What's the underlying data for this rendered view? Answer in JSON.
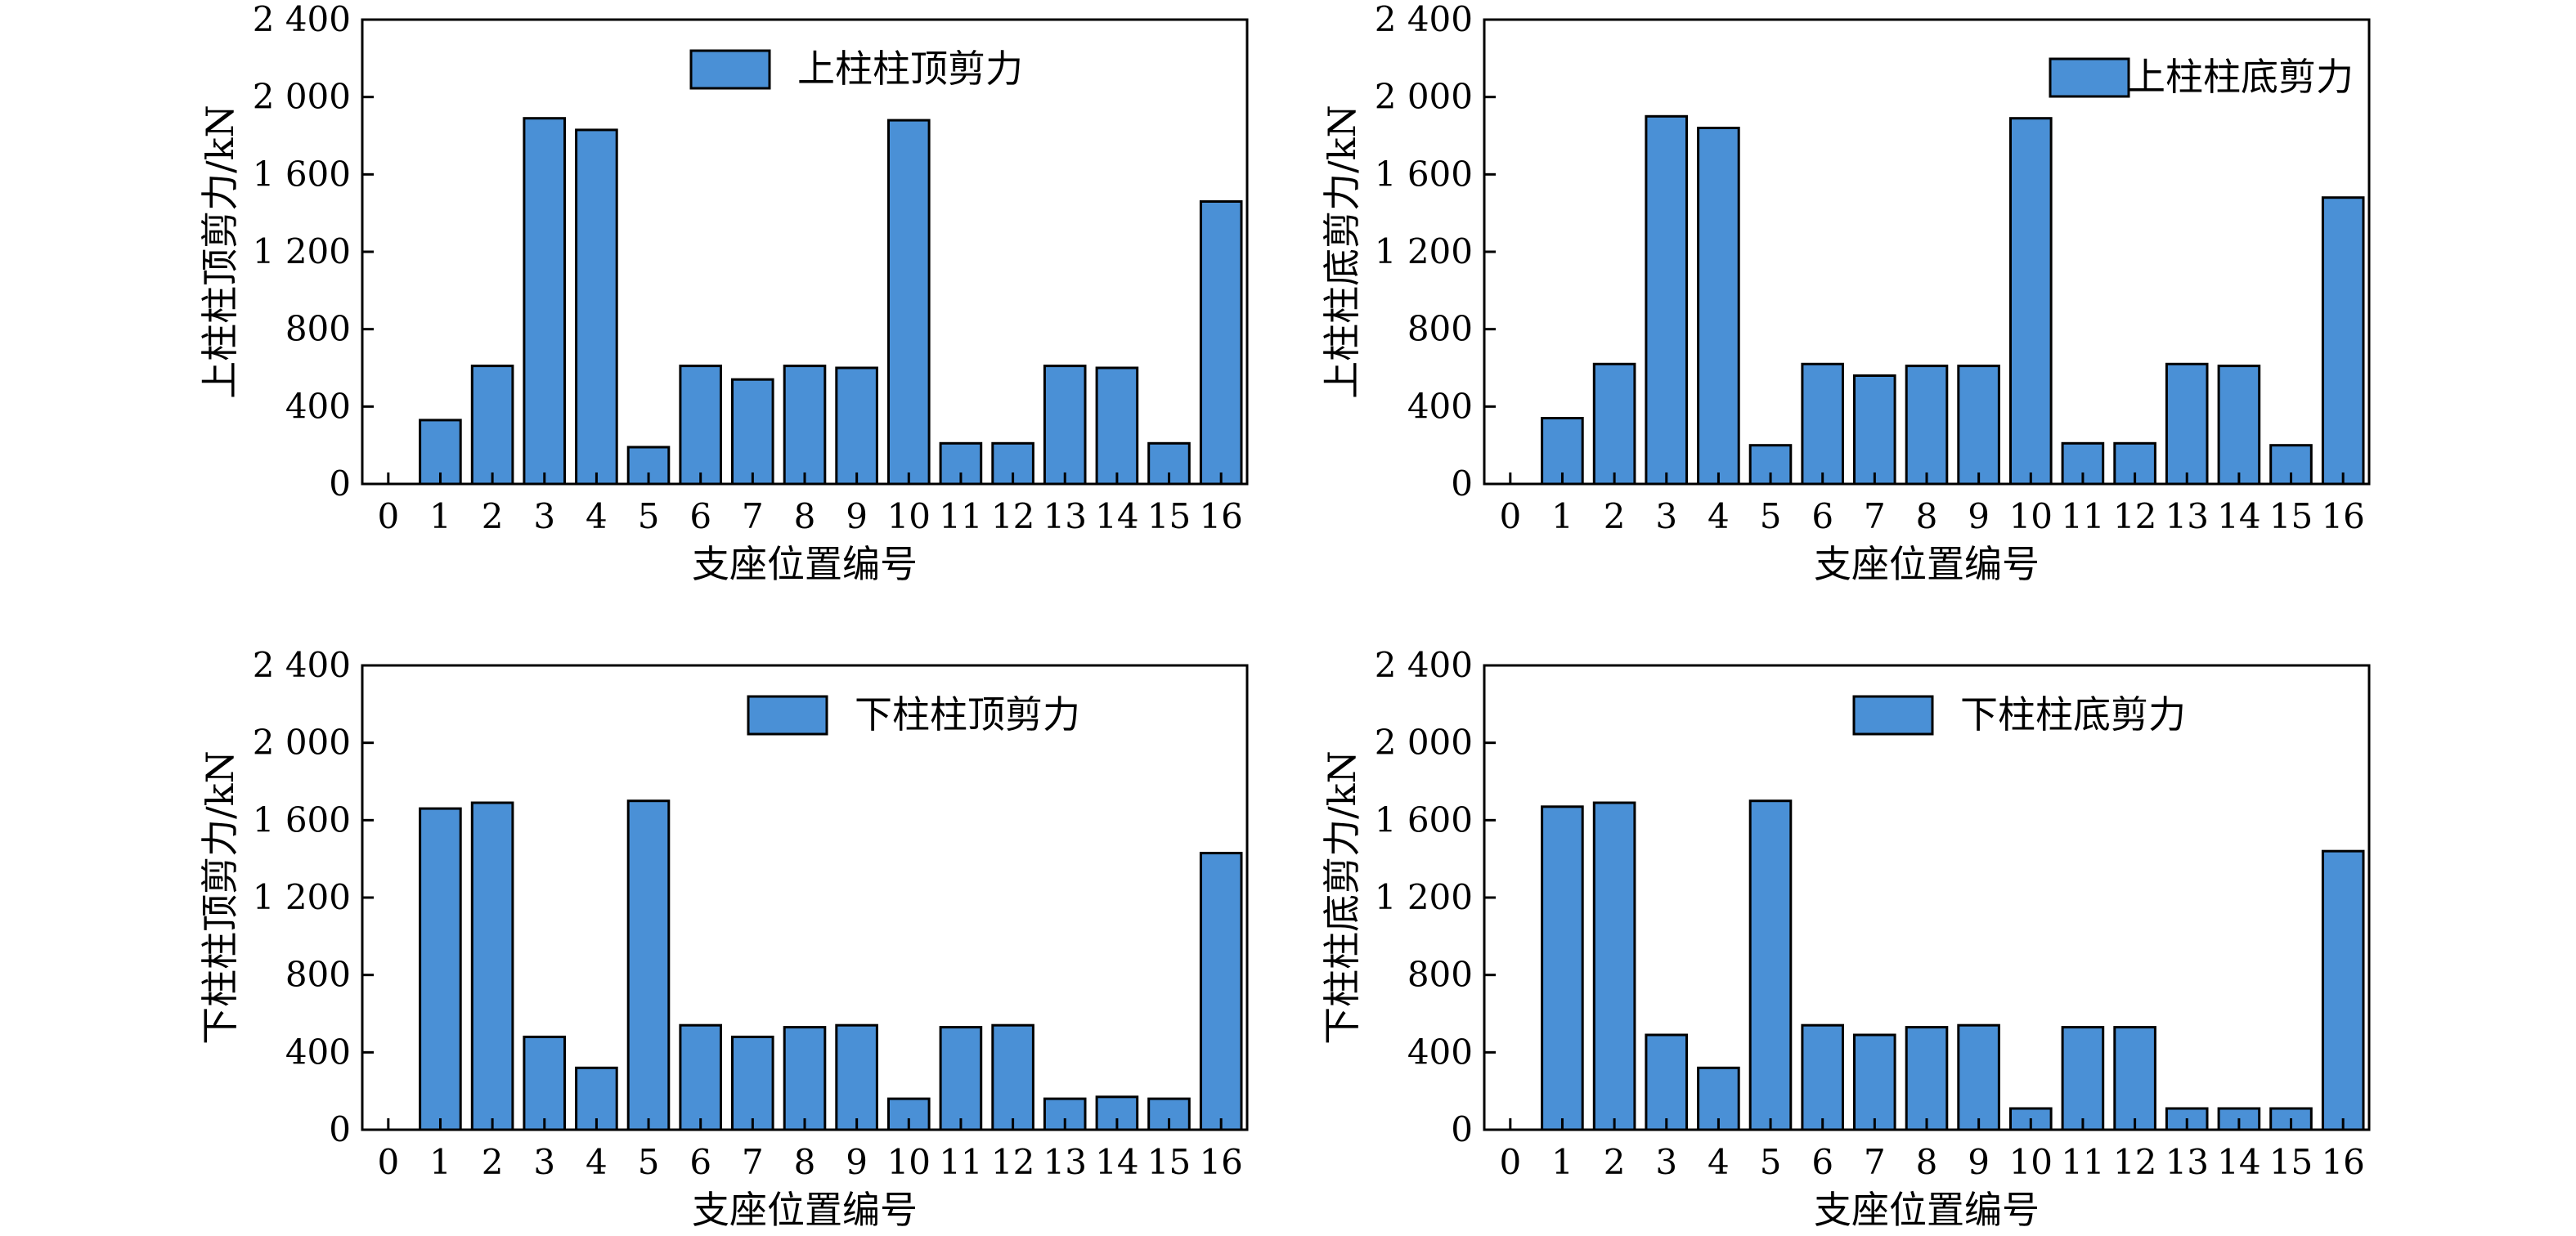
{
  "chart_data": [
    {
      "type": "bar",
      "title": "",
      "xlabel": "支座位置编号",
      "ylabel": "上柱柱顶剪力/kN",
      "categories": [
        "1",
        "2",
        "3",
        "4",
        "5",
        "6",
        "7",
        "8",
        "9",
        "10",
        "11",
        "12",
        "13",
        "14",
        "15",
        "16"
      ],
      "x_ticks": [
        "0",
        "1",
        "2",
        "3",
        "4",
        "5",
        "6",
        "7",
        "8",
        "9",
        "10",
        "11",
        "12",
        "13",
        "14",
        "15",
        "16"
      ],
      "y_ticks": [
        "0",
        "400",
        "800",
        "1 200",
        "1 600",
        "2 000",
        "2 400"
      ],
      "ylim": [
        0,
        2400
      ],
      "grid": false,
      "legend_position": "top-right",
      "series": [
        {
          "name": "上柱柱顶剪力",
          "color": "#4a90d6",
          "values": [
            330,
            610,
            1890,
            1830,
            190,
            610,
            540,
            610,
            600,
            1880,
            210,
            210,
            610,
            600,
            210,
            1460
          ]
        }
      ]
    },
    {
      "type": "bar",
      "title": "",
      "xlabel": "支座位置编号",
      "ylabel": "上柱柱底剪力/kN",
      "categories": [
        "1",
        "2",
        "3",
        "4",
        "5",
        "6",
        "7",
        "8",
        "9",
        "10",
        "11",
        "12",
        "13",
        "14",
        "15",
        "16"
      ],
      "x_ticks": [
        "0",
        "1",
        "2",
        "3",
        "4",
        "5",
        "6",
        "7",
        "8",
        "9",
        "10",
        "11",
        "12",
        "13",
        "14",
        "15",
        "16"
      ],
      "y_ticks": [
        "0",
        "400",
        "800",
        "1 200",
        "1 600",
        "2 000",
        "2 400"
      ],
      "ylim": [
        0,
        2400
      ],
      "grid": false,
      "legend_position": "top-right",
      "series": [
        {
          "name": "上柱柱底剪力",
          "color": "#4a90d6",
          "values": [
            340,
            620,
            1900,
            1840,
            200,
            620,
            560,
            610,
            610,
            1890,
            210,
            210,
            620,
            610,
            200,
            1480
          ]
        }
      ]
    },
    {
      "type": "bar",
      "title": "",
      "xlabel": "支座位置编号",
      "ylabel": "下柱柱顶剪力/kN",
      "categories": [
        "1",
        "2",
        "3",
        "4",
        "5",
        "6",
        "7",
        "8",
        "9",
        "10",
        "11",
        "12",
        "13",
        "14",
        "15",
        "16"
      ],
      "x_ticks": [
        "0",
        "1",
        "2",
        "3",
        "4",
        "5",
        "6",
        "7",
        "8",
        "9",
        "10",
        "11",
        "12",
        "13",
        "14",
        "15",
        "16"
      ],
      "y_ticks": [
        "0",
        "400",
        "800",
        "1 200",
        "1 600",
        "2 000",
        "2 400"
      ],
      "ylim": [
        0,
        2400
      ],
      "grid": false,
      "legend_position": "top-right",
      "series": [
        {
          "name": "下柱柱顶剪力",
          "color": "#4a90d6",
          "values": [
            1660,
            1690,
            480,
            320,
            1700,
            540,
            480,
            530,
            540,
            160,
            530,
            540,
            160,
            170,
            160,
            1430
          ]
        }
      ]
    },
    {
      "type": "bar",
      "title": "",
      "xlabel": "支座位置编号",
      "ylabel": "下柱柱底剪力/kN",
      "categories": [
        "1",
        "2",
        "3",
        "4",
        "5",
        "6",
        "7",
        "8",
        "9",
        "10",
        "11",
        "12",
        "13",
        "14",
        "15",
        "16"
      ],
      "x_ticks": [
        "0",
        "1",
        "2",
        "3",
        "4",
        "5",
        "6",
        "7",
        "8",
        "9",
        "10",
        "11",
        "12",
        "13",
        "14",
        "15",
        "16"
      ],
      "y_ticks": [
        "0",
        "400",
        "800",
        "1 200",
        "1 600",
        "2 000",
        "2 400"
      ],
      "ylim": [
        0,
        2400
      ],
      "grid": false,
      "legend_position": "top-right",
      "series": [
        {
          "name": "下柱柱底剪力",
          "color": "#4a90d6",
          "values": [
            1670,
            1690,
            490,
            320,
            1700,
            540,
            490,
            530,
            540,
            110,
            530,
            530,
            110,
            110,
            110,
            1440
          ]
        }
      ]
    }
  ]
}
